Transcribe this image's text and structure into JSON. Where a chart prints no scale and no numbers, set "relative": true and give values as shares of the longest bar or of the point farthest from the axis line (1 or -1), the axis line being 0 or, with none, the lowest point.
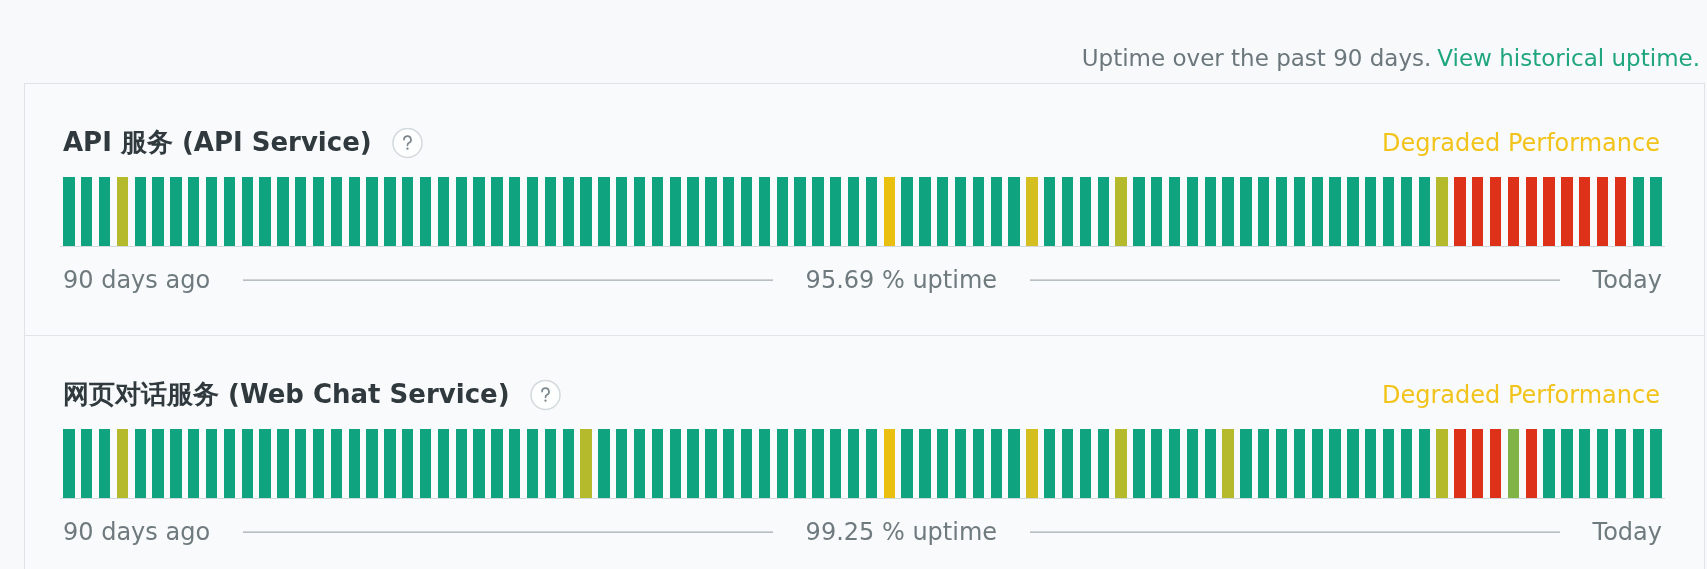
{
  "chart_data": [
    {
      "type": "bar",
      "title": "API 服务 (API Service)",
      "annotations": [
        "Uptime over the past 90 days.",
        "View historical uptime.",
        "Degraded Performance",
        "90 days ago",
        "95.69 % uptime",
        "Today"
      ],
      "relative": true,
      "categories": [
        null,
        null,
        null,
        null,
        null,
        null,
        null,
        null,
        null,
        null,
        null,
        null,
        null,
        null,
        null,
        null,
        null,
        null,
        null,
        null,
        null,
        null,
        null,
        null,
        null,
        null,
        null,
        null,
        null,
        null,
        null,
        null,
        null,
        null,
        null,
        null,
        null,
        null,
        null,
        null,
        null,
        null,
        null,
        null,
        null,
        null,
        null,
        null,
        null,
        null,
        null,
        null,
        null,
        null,
        null,
        null,
        null,
        null,
        null,
        null,
        null,
        null,
        null,
        null,
        null,
        null,
        null,
        null,
        null,
        null,
        null,
        null,
        null,
        null,
        null,
        null,
        null,
        null,
        null,
        null,
        null,
        null,
        null,
        null,
        null,
        null,
        null,
        null,
        null,
        null
      ],
      "values": [
        1,
        1,
        1,
        1,
        1,
        1,
        1,
        1,
        1,
        1,
        1,
        1,
        1,
        1,
        1,
        1,
        1,
        1,
        1,
        1,
        1,
        1,
        1,
        1,
        1,
        1,
        1,
        1,
        1,
        1,
        1,
        1,
        1,
        1,
        1,
        1,
        1,
        1,
        1,
        1,
        1,
        1,
        1,
        1,
        1,
        1,
        1,
        1,
        1,
        1,
        1,
        1,
        1,
        1,
        1,
        1,
        1,
        1,
        1,
        1,
        1,
        1,
        1,
        1,
        1,
        1,
        1,
        1,
        1,
        1,
        1,
        1,
        1,
        1,
        1,
        1,
        1,
        1,
        1,
        1,
        1,
        1,
        1,
        1,
        1,
        1,
        1,
        1,
        1,
        1
      ],
      "colors": [
        "#10a37f",
        "#10a37f",
        "#10a37f",
        "#b5b92c",
        "#10a37f",
        "#10a37f",
        "#10a37f",
        "#10a37f",
        "#10a37f",
        "#10a37f",
        "#10a37f",
        "#10a37f",
        "#10a37f",
        "#10a37f",
        "#10a37f",
        "#10a37f",
        "#10a37f",
        "#10a37f",
        "#10a37f",
        "#10a37f",
        "#10a37f",
        "#10a37f",
        "#10a37f",
        "#10a37f",
        "#10a37f",
        "#10a37f",
        "#10a37f",
        "#10a37f",
        "#10a37f",
        "#10a37f",
        "#10a37f",
        "#10a37f",
        "#10a37f",
        "#10a37f",
        "#10a37f",
        "#10a37f",
        "#10a37f",
        "#10a37f",
        "#10a37f",
        "#10a37f",
        "#10a37f",
        "#10a37f",
        "#10a37f",
        "#10a37f",
        "#10a37f",
        "#10a37f",
        "#e9c010",
        "#10a37f",
        "#10a37f",
        "#10a37f",
        "#10a37f",
        "#10a37f",
        "#10a37f",
        "#10a37f",
        "#d4be20",
        "#10a37f",
        "#10a37f",
        "#10a37f",
        "#10a37f",
        "#b5b92c",
        "#10a37f",
        "#10a37f",
        "#10a37f",
        "#10a37f",
        "#10a37f",
        "#10a37f",
        "#10a37f",
        "#10a37f",
        "#10a37f",
        "#10a37f",
        "#10a37f",
        "#10a37f",
        "#10a37f",
        "#10a37f",
        "#10a37f",
        "#10a37f",
        "#10a37f",
        "#b5b92c",
        "#de3119",
        "#de3119",
        "#de3119",
        "#de3119",
        "#de3119",
        "#de3119",
        "#de3119",
        "#de3119",
        "#de3119",
        "#de3119",
        "#10a37f",
        "#10a37f"
      ]
    },
    {
      "type": "bar",
      "title": "网页对话服务 (Web Chat Service)",
      "annotations": [
        "Degraded Performance",
        "90 days ago",
        "99.25 % uptime",
        "Today"
      ],
      "relative": true,
      "categories": [
        null,
        null,
        null,
        null,
        null,
        null,
        null,
        null,
        null,
        null,
        null,
        null,
        null,
        null,
        null,
        null,
        null,
        null,
        null,
        null,
        null,
        null,
        null,
        null,
        null,
        null,
        null,
        null,
        null,
        null,
        null,
        null,
        null,
        null,
        null,
        null,
        null,
        null,
        null,
        null,
        null,
        null,
        null,
        null,
        null,
        null,
        null,
        null,
        null,
        null,
        null,
        null,
        null,
        null,
        null,
        null,
        null,
        null,
        null,
        null,
        null,
        null,
        null,
        null,
        null,
        null,
        null,
        null,
        null,
        null,
        null,
        null,
        null,
        null,
        null,
        null,
        null,
        null,
        null,
        null,
        null,
        null,
        null,
        null,
        null,
        null,
        null,
        null,
        null,
        null
      ],
      "values": [
        1,
        1,
        1,
        1,
        1,
        1,
        1,
        1,
        1,
        1,
        1,
        1,
        1,
        1,
        1,
        1,
        1,
        1,
        1,
        1,
        1,
        1,
        1,
        1,
        1,
        1,
        1,
        1,
        1,
        1,
        1,
        1,
        1,
        1,
        1,
        1,
        1,
        1,
        1,
        1,
        1,
        1,
        1,
        1,
        1,
        1,
        1,
        1,
        1,
        1,
        1,
        1,
        1,
        1,
        1,
        1,
        1,
        1,
        1,
        1,
        1,
        1,
        1,
        1,
        1,
        1,
        1,
        1,
        1,
        1,
        1,
        1,
        1,
        1,
        1,
        1,
        1,
        1,
        1,
        1,
        1,
        1,
        1,
        1,
        1,
        1,
        1,
        1,
        1,
        1
      ],
      "colors": [
        "#10a37f",
        "#10a37f",
        "#10a37f",
        "#b5b92c",
        "#10a37f",
        "#10a37f",
        "#10a37f",
        "#10a37f",
        "#10a37f",
        "#10a37f",
        "#10a37f",
        "#10a37f",
        "#10a37f",
        "#10a37f",
        "#10a37f",
        "#10a37f",
        "#10a37f",
        "#10a37f",
        "#10a37f",
        "#10a37f",
        "#10a37f",
        "#10a37f",
        "#10a37f",
        "#10a37f",
        "#10a37f",
        "#10a37f",
        "#10a37f",
        "#10a37f",
        "#10a37f",
        "#b5b92c",
        "#10a37f",
        "#10a37f",
        "#10a37f",
        "#10a37f",
        "#10a37f",
        "#10a37f",
        "#10a37f",
        "#10a37f",
        "#10a37f",
        "#10a37f",
        "#10a37f",
        "#10a37f",
        "#10a37f",
        "#10a37f",
        "#10a37f",
        "#10a37f",
        "#e9c010",
        "#10a37f",
        "#10a37f",
        "#10a37f",
        "#10a37f",
        "#10a37f",
        "#10a37f",
        "#10a37f",
        "#d4be20",
        "#10a37f",
        "#10a37f",
        "#10a37f",
        "#10a37f",
        "#b5b92c",
        "#10a37f",
        "#10a37f",
        "#10a37f",
        "#10a37f",
        "#10a37f",
        "#b5b92c",
        "#10a37f",
        "#10a37f",
        "#10a37f",
        "#10a37f",
        "#10a37f",
        "#10a37f",
        "#10a37f",
        "#10a37f",
        "#10a37f",
        "#10a37f",
        "#10a37f",
        "#b5b92c",
        "#de3119",
        "#de3119",
        "#de3119",
        "#80b446",
        "#de3119",
        "#10a37f",
        "#10a37f",
        "#10a37f",
        "#10a37f",
        "#10a37f",
        "#10a37f",
        "#10a37f"
      ]
    }
  ]
}
